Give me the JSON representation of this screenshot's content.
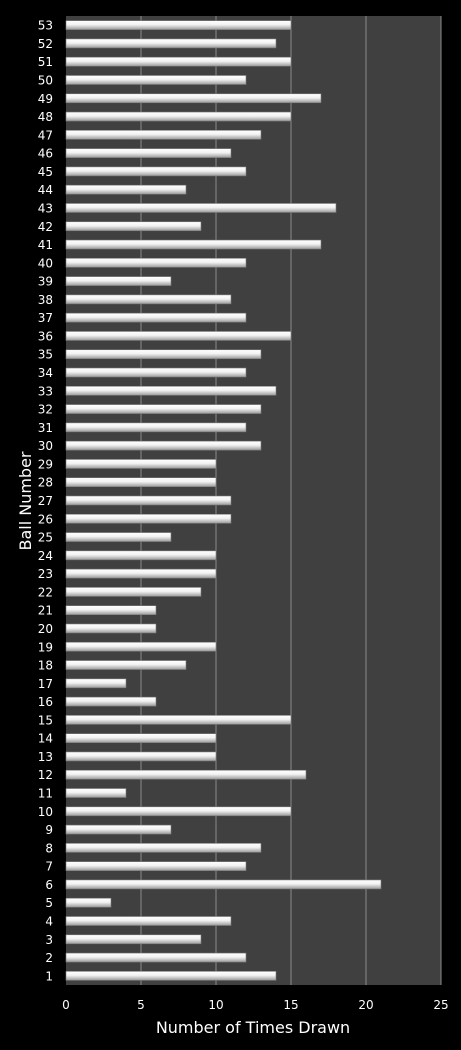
{
  "chart_data": {
    "type": "bar",
    "orientation": "horizontal",
    "title": "",
    "xlabel": "Number of Times Drawn",
    "ylabel": "Ball Number",
    "xlim": [
      0,
      25
    ],
    "x_ticks": [
      "0",
      "5",
      "10",
      "15",
      "20",
      "25"
    ],
    "grid": "vertical",
    "plot_background": "#404040",
    "background": "#000000",
    "bar_color": "#e8e8e8",
    "categories": [
      "1",
      "2",
      "3",
      "4",
      "5",
      "6",
      "7",
      "8",
      "9",
      "10",
      "11",
      "12",
      "13",
      "14",
      "15",
      "16",
      "17",
      "18",
      "19",
      "20",
      "21",
      "22",
      "23",
      "24",
      "25",
      "26",
      "27",
      "28",
      "29",
      "30",
      "31",
      "32",
      "33",
      "34",
      "35",
      "36",
      "37",
      "38",
      "39",
      "40",
      "41",
      "42",
      "43",
      "44",
      "45",
      "46",
      "47",
      "48",
      "49",
      "50",
      "51",
      "52",
      "53"
    ],
    "values": [
      14,
      12,
      9,
      11,
      3,
      21,
      12,
      13,
      7,
      15,
      4,
      16,
      10,
      10,
      15,
      6,
      4,
      8,
      10,
      6,
      6,
      9,
      10,
      10,
      7,
      11,
      11,
      10,
      10,
      13,
      12,
      13,
      14,
      12,
      13,
      15,
      12,
      11,
      7,
      12,
      17,
      9,
      18,
      8,
      12,
      11,
      13,
      15,
      17,
      12,
      15,
      14,
      15
    ]
  }
}
